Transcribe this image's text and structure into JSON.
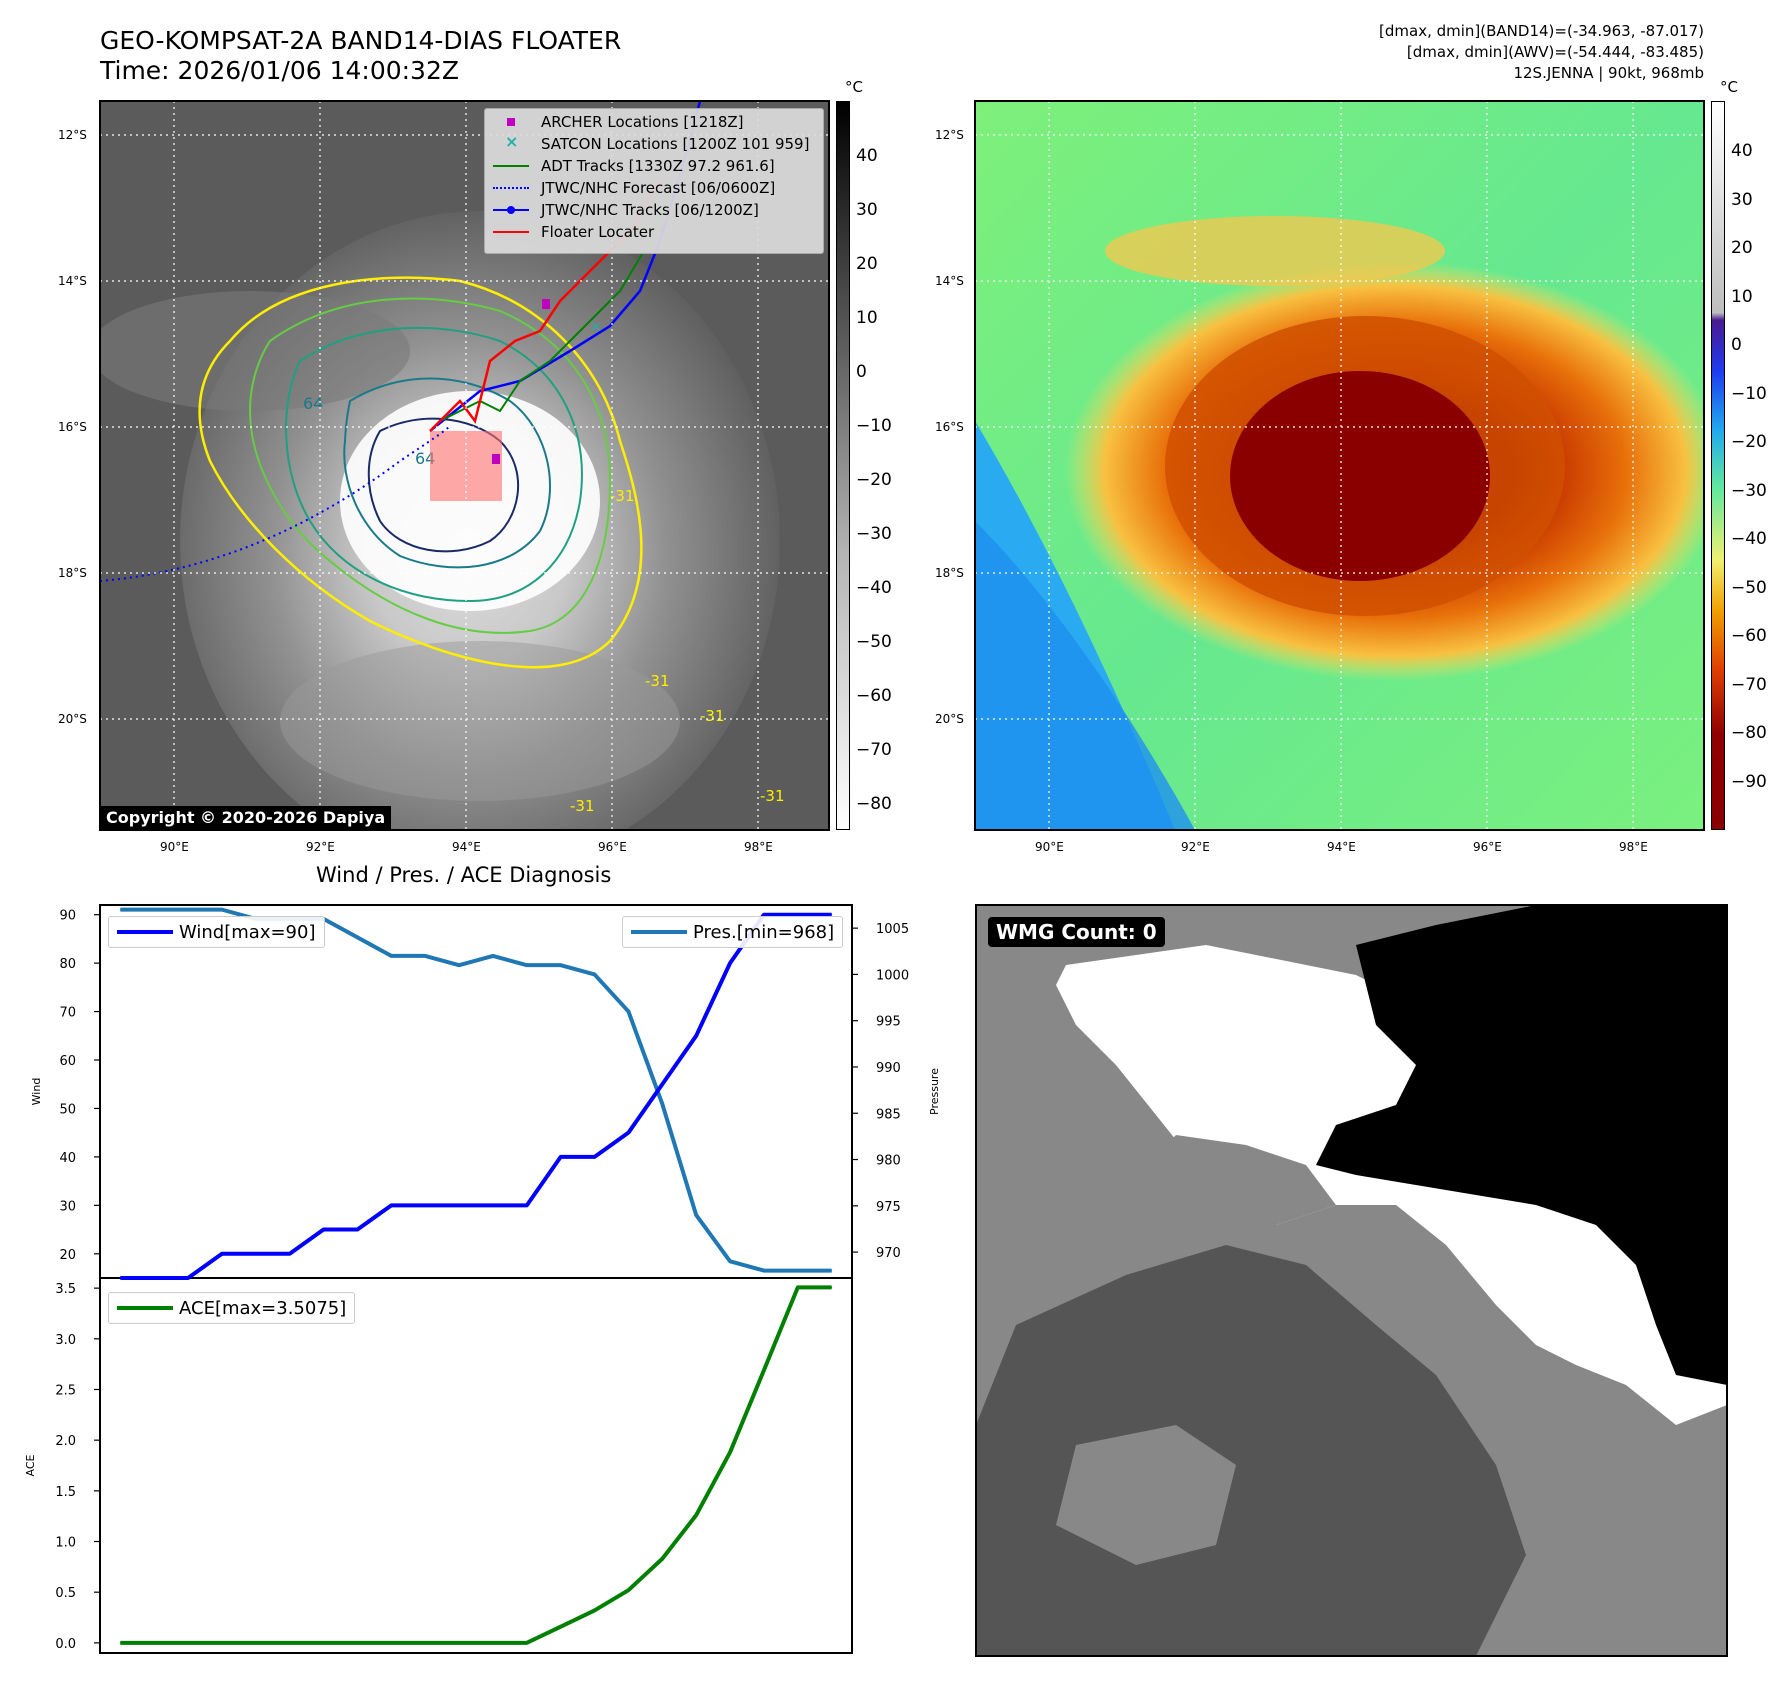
{
  "header": {
    "title": "GEO-KOMPSAT-2A BAND14-DIAS FLOATER",
    "time": "Time: 2026/01/06 14:00:32Z",
    "info_line1": "[dmax, dmin](BAND14)=(-34.963, -87.017)",
    "info_line2": "[dmax, dmin](AWV)=(-54.444, -83.485)",
    "info_line3": "12S.JENNA | 90kt, 968mb"
  },
  "maps": {
    "lat_labels": [
      "12°S",
      "14°S",
      "16°S",
      "18°S",
      "20°S"
    ],
    "lon_labels": [
      "90°E",
      "92°E",
      "94°E",
      "96°E",
      "98°E"
    ]
  },
  "ir_panel": {
    "colorbar_unit": "°C",
    "colorbar_ticks": [
      "40",
      "30",
      "20",
      "10",
      "0",
      "−10",
      "−20",
      "−30",
      "−40",
      "−50",
      "−60",
      "−70",
      "−80"
    ],
    "copyright": "Copyright © 2020-2026 Dapiya",
    "contour_labels": [
      "64",
      "64",
      "-31",
      "-31",
      "-31",
      "-31",
      "-31"
    ],
    "legend": [
      {
        "label": "ARCHER Locations [1218Z]",
        "color": "#c000c0",
        "icon": "square-marker"
      },
      {
        "label": "SATCON Locations [1200Z 101 959]",
        "color": "#20b2aa",
        "icon": "x-marker"
      },
      {
        "label": "ADT Tracks [1330Z 97.2 961.6]",
        "color": "#008000",
        "icon": "line"
      },
      {
        "label": "JTWC/NHC Forecast [06/0600Z]",
        "color": "#0000ff",
        "icon": "dotted-line"
      },
      {
        "label": "JTWC/NHC Tracks [06/1200Z]",
        "color": "#0000ff",
        "icon": "line-dot"
      },
      {
        "label": "Floater Locater",
        "color": "#ff0000",
        "icon": "line"
      }
    ]
  },
  "wv_panel": {
    "colorbar_unit": "°C",
    "colorbar_ticks": [
      "40",
      "30",
      "20",
      "10",
      "0",
      "−10",
      "−20",
      "−30",
      "−40",
      "−50",
      "−60",
      "−70",
      "−80",
      "−90"
    ]
  },
  "diagnosis": {
    "title": "Wind / Pres. / ACE Diagnosis",
    "wind_axis_label": "Wind",
    "pressure_axis_label": "Pressure",
    "ace_axis_label": "ACE",
    "wind_legend": "Wind[max=90]",
    "pressure_legend": "Pres.[min=968]",
    "ace_legend": "ACE[max=3.5075]",
    "wind_ticks": [
      "20",
      "30",
      "40",
      "50",
      "60",
      "70",
      "80",
      "90"
    ],
    "pressure_ticks": [
      "970",
      "975",
      "980",
      "985",
      "990",
      "995",
      "1000",
      "1005"
    ],
    "ace_ticks": [
      "0.0",
      "0.5",
      "1.0",
      "1.5",
      "2.0",
      "2.5",
      "3.0",
      "3.5"
    ],
    "wind_color": "#0000ff",
    "pressure_color": "#1f77b4",
    "ace_color": "#008000"
  },
  "wmg": {
    "label": "WMG Count: 0"
  },
  "chart_data": [
    {
      "type": "line",
      "title": "Wind / Pres. / ACE Diagnosis",
      "x": [
        0,
        1,
        2,
        3,
        4,
        5,
        6,
        7,
        8,
        9,
        10,
        11,
        12,
        13,
        14,
        15,
        16,
        17,
        18,
        19,
        20,
        21
      ],
      "series": [
        {
          "name": "Wind[max=90]",
          "axis": "Wind",
          "values": [
            15,
            15,
            15,
            20,
            20,
            20,
            25,
            25,
            30,
            30,
            30,
            30,
            30,
            40,
            40,
            45,
            55,
            65,
            80,
            90,
            90,
            90
          ]
        },
        {
          "name": "Pres.[min=968]",
          "axis": "Pressure",
          "values": [
            1007,
            1007,
            1007,
            1007,
            1006,
            1006,
            1006,
            1004,
            1002,
            1002,
            1001,
            1002,
            1001,
            1001,
            1000,
            996,
            986,
            974,
            969,
            968,
            968,
            968
          ]
        }
      ],
      "ylabel": "Wind",
      "ylim": [
        15,
        92
      ],
      "y2label": "Pressure",
      "y2lim": [
        967.2,
        1007.5
      ]
    },
    {
      "type": "line",
      "x": [
        0,
        1,
        2,
        3,
        4,
        5,
        6,
        7,
        8,
        9,
        10,
        11,
        12,
        13,
        14,
        15,
        16,
        17,
        18,
        19,
        20,
        21
      ],
      "series": [
        {
          "name": "ACE[max=3.5075]",
          "values": [
            0,
            0,
            0,
            0,
            0,
            0,
            0,
            0,
            0,
            0,
            0,
            0,
            0,
            0.16,
            0.32,
            0.52,
            0.83,
            1.26,
            1.88,
            2.69,
            3.5075,
            3.5075
          ]
        }
      ],
      "ylabel": "ACE",
      "ylim": [
        -0.1,
        3.6
      ]
    }
  ]
}
